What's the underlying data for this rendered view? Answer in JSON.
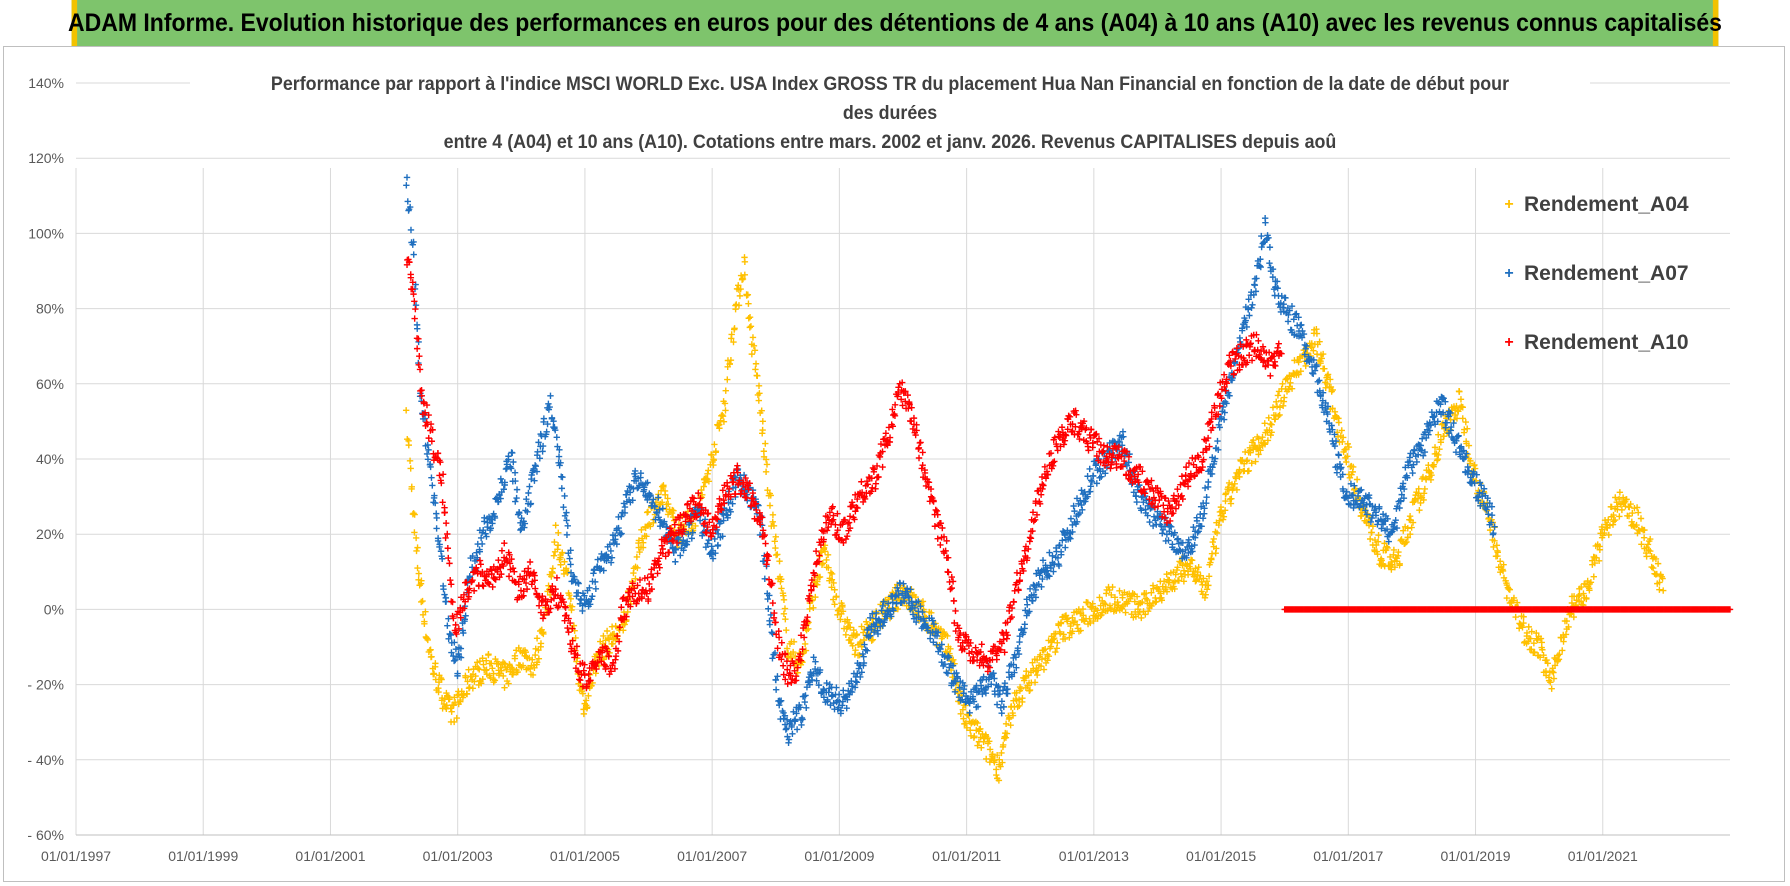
{
  "banner": {
    "title": "ADAM Informe. Evolution historique des performances en euros pour des détentions de 4 ans (A04) à 10 ans (A10) avec les revenus connus capitalisés"
  },
  "colors": {
    "banner_bg": "#7ec46c",
    "banner_border": "#f2c200",
    "A04": "#ffc000",
    "A07": "#1f6fbf",
    "A10": "#ff0000",
    "grid": "#d9d9d9"
  },
  "chart_data": {
    "type": "scatter",
    "title_lines": [
      "Performance par rapport à l'indice MSCI WORLD Exc. USA Index GROSS TR  du placement Hua Nan Financial  en fonction de la date de début pour",
      "des durées",
      "entre 4 (A04) et 10 ans (A10).  Cotations entre mars. 2002 et janv. 2026.  Revenus CAPITALISES depuis aoû"
    ],
    "xlabel": "",
    "ylabel": "",
    "x_range": [
      1997.0,
      2023.0
    ],
    "ylim": [
      -60,
      140
    ],
    "x_ticks": [
      {
        "year": 1997,
        "label": "01/01/1997"
      },
      {
        "year": 1999,
        "label": "01/01/1999"
      },
      {
        "year": 2001,
        "label": "01/01/2001"
      },
      {
        "year": 2003,
        "label": "01/01/2003"
      },
      {
        "year": 2005,
        "label": "01/01/2005"
      },
      {
        "year": 2007,
        "label": "01/01/2007"
      },
      {
        "year": 2009,
        "label": "01/01/2009"
      },
      {
        "year": 2011,
        "label": "01/01/2011"
      },
      {
        "year": 2013,
        "label": "01/01/2013"
      },
      {
        "year": 2015,
        "label": "01/01/2015"
      },
      {
        "year": 2017,
        "label": "01/01/2017"
      },
      {
        "year": 2019,
        "label": "01/01/2019"
      },
      {
        "year": 2021,
        "label": "01/01/2021"
      }
    ],
    "y_ticks": [
      {
        "value": 140,
        "label": "140%"
      },
      {
        "value": 120,
        "label": "120%"
      },
      {
        "value": 100,
        "label": "100%"
      },
      {
        "value": 80,
        "label": "80%"
      },
      {
        "value": 60,
        "label": "60%"
      },
      {
        "value": 40,
        "label": "40%"
      },
      {
        "value": 20,
        "label": "20%"
      },
      {
        "value": 0,
        "label": "0%"
      },
      {
        "value": -20,
        "label": "- 20%"
      },
      {
        "value": -40,
        "label": "- 40%"
      },
      {
        "value": -60,
        "label": "- 60%"
      }
    ],
    "legend_position": "right",
    "series": [
      {
        "name": "Rendement_A04",
        "color": "#ffc000",
        "marker": "+",
        "points": [
          [
            2002.2,
            50
          ],
          [
            2002.35,
            15
          ],
          [
            2002.5,
            -5
          ],
          [
            2002.6,
            -15
          ],
          [
            2002.75,
            -22
          ],
          [
            2002.9,
            -28
          ],
          [
            2003.0,
            -25
          ],
          [
            2003.2,
            -18
          ],
          [
            2003.5,
            -15
          ],
          [
            2003.75,
            -18
          ],
          [
            2004.0,
            -12
          ],
          [
            2004.2,
            -15
          ],
          [
            2004.4,
            0
          ],
          [
            2004.55,
            20
          ],
          [
            2004.75,
            5
          ],
          [
            2004.9,
            -18
          ],
          [
            2005.0,
            -26
          ],
          [
            2005.2,
            -12
          ],
          [
            2005.4,
            -8
          ],
          [
            2005.6,
            -5
          ],
          [
            2005.8,
            12
          ],
          [
            2006.0,
            25
          ],
          [
            2006.25,
            30
          ],
          [
            2006.45,
            20
          ],
          [
            2006.75,
            25
          ],
          [
            2007.0,
            40
          ],
          [
            2007.2,
            55
          ],
          [
            2007.35,
            78
          ],
          [
            2007.5,
            92
          ],
          [
            2007.6,
            75
          ],
          [
            2007.75,
            55
          ],
          [
            2007.9,
            30
          ],
          [
            2008.05,
            10
          ],
          [
            2008.2,
            -10
          ],
          [
            2008.4,
            -15
          ],
          [
            2008.6,
            5
          ],
          [
            2008.75,
            15
          ],
          [
            2009.0,
            0
          ],
          [
            2009.25,
            -10
          ],
          [
            2009.5,
            -5
          ],
          [
            2009.75,
            0
          ],
          [
            2010.0,
            5
          ],
          [
            2010.25,
            0
          ],
          [
            2010.5,
            -5
          ],
          [
            2010.75,
            -12
          ],
          [
            2010.9,
            -25
          ],
          [
            2011.0,
            -30
          ],
          [
            2011.25,
            -35
          ],
          [
            2011.5,
            -42
          ],
          [
            2011.75,
            -25
          ],
          [
            2012.0,
            -18
          ],
          [
            2012.25,
            -12
          ],
          [
            2012.5,
            -5
          ],
          [
            2012.75,
            -3
          ],
          [
            2013.0,
            0
          ],
          [
            2013.25,
            3
          ],
          [
            2013.5,
            2
          ],
          [
            2013.75,
            0
          ],
          [
            2014.0,
            5
          ],
          [
            2014.25,
            8
          ],
          [
            2014.5,
            12
          ],
          [
            2014.75,
            5
          ],
          [
            2015.0,
            25
          ],
          [
            2015.25,
            35
          ],
          [
            2015.5,
            42
          ],
          [
            2015.75,
            48
          ],
          [
            2016.0,
            58
          ],
          [
            2016.25,
            66
          ],
          [
            2016.5,
            72
          ],
          [
            2016.75,
            55
          ],
          [
            2017.0,
            40
          ],
          [
            2017.25,
            25
          ],
          [
            2017.5,
            15
          ],
          [
            2017.75,
            12
          ],
          [
            2018.0,
            25
          ],
          [
            2018.25,
            35
          ],
          [
            2018.5,
            48
          ],
          [
            2018.75,
            55
          ],
          [
            2019.0,
            35
          ],
          [
            2019.25,
            22
          ],
          [
            2019.5,
            5
          ],
          [
            2019.75,
            -5
          ],
          [
            2020.0,
            -10
          ],
          [
            2020.2,
            -20
          ],
          [
            2020.35,
            -8
          ],
          [
            2020.5,
            0
          ],
          [
            2020.75,
            5
          ],
          [
            2021.0,
            20
          ],
          [
            2021.25,
            28
          ],
          [
            2021.5,
            25
          ],
          [
            2021.75,
            15
          ],
          [
            2021.95,
            5
          ]
        ]
      },
      {
        "name": "Rendement_A07",
        "color": "#1f6fbf",
        "marker": "+",
        "points": [
          [
            2002.2,
            115
          ],
          [
            2002.3,
            95
          ],
          [
            2002.4,
            60
          ],
          [
            2002.55,
            40
          ],
          [
            2002.7,
            20
          ],
          [
            2002.85,
            -5
          ],
          [
            2003.0,
            -15
          ],
          [
            2003.2,
            10
          ],
          [
            2003.4,
            20
          ],
          [
            2003.6,
            28
          ],
          [
            2003.85,
            40
          ],
          [
            2004.0,
            20
          ],
          [
            2004.2,
            35
          ],
          [
            2004.45,
            55
          ],
          [
            2004.6,
            40
          ],
          [
            2004.8,
            10
          ],
          [
            2005.0,
            0
          ],
          [
            2005.2,
            10
          ],
          [
            2005.4,
            15
          ],
          [
            2005.6,
            25
          ],
          [
            2005.8,
            35
          ],
          [
            2006.0,
            30
          ],
          [
            2006.2,
            25
          ],
          [
            2006.4,
            15
          ],
          [
            2006.6,
            20
          ],
          [
            2006.8,
            25
          ],
          [
            2007.0,
            15
          ],
          [
            2007.2,
            25
          ],
          [
            2007.4,
            35
          ],
          [
            2007.6,
            30
          ],
          [
            2007.75,
            25
          ],
          [
            2007.9,
            0
          ],
          [
            2008.05,
            -25
          ],
          [
            2008.2,
            -32
          ],
          [
            2008.4,
            -28
          ],
          [
            2008.6,
            -15
          ],
          [
            2008.8,
            -22
          ],
          [
            2009.0,
            -25
          ],
          [
            2009.25,
            -20
          ],
          [
            2009.5,
            -5
          ],
          [
            2009.75,
            0
          ],
          [
            2010.0,
            5
          ],
          [
            2010.2,
            0
          ],
          [
            2010.45,
            -5
          ],
          [
            2010.7,
            -15
          ],
          [
            2010.9,
            -22
          ],
          [
            2011.1,
            -25
          ],
          [
            2011.35,
            -18
          ],
          [
            2011.55,
            -25
          ],
          [
            2011.75,
            -15
          ],
          [
            2011.95,
            0
          ],
          [
            2012.2,
            10
          ],
          [
            2012.45,
            15
          ],
          [
            2012.7,
            25
          ],
          [
            2012.95,
            35
          ],
          [
            2013.2,
            40
          ],
          [
            2013.45,
            45
          ],
          [
            2013.7,
            30
          ],
          [
            2013.95,
            25
          ],
          [
            2014.2,
            20
          ],
          [
            2014.45,
            15
          ],
          [
            2014.7,
            25
          ],
          [
            2014.95,
            45
          ],
          [
            2015.15,
            60
          ],
          [
            2015.35,
            75
          ],
          [
            2015.55,
            88
          ],
          [
            2015.7,
            102
          ],
          [
            2015.85,
            85
          ],
          [
            2016.0,
            80
          ],
          [
            2016.2,
            75
          ],
          [
            2016.45,
            65
          ],
          [
            2016.7,
            50
          ],
          [
            2016.95,
            30
          ],
          [
            2017.2,
            30
          ],
          [
            2017.45,
            25
          ],
          [
            2017.7,
            20
          ],
          [
            2017.95,
            38
          ],
          [
            2018.2,
            45
          ],
          [
            2018.45,
            55
          ],
          [
            2018.7,
            45
          ],
          [
            2018.95,
            35
          ],
          [
            2019.15,
            28
          ],
          [
            2019.3,
            22
          ]
        ]
      },
      {
        "name": "Rendement_A10",
        "color": "#ff0000",
        "marker": "+",
        "points": [
          [
            2002.2,
            95
          ],
          [
            2002.3,
            85
          ],
          [
            2002.45,
            55
          ],
          [
            2002.6,
            45
          ],
          [
            2002.75,
            35
          ],
          [
            2002.85,
            15
          ],
          [
            2002.95,
            -5
          ],
          [
            2003.15,
            5
          ],
          [
            2003.35,
            10
          ],
          [
            2003.55,
            8
          ],
          [
            2003.75,
            15
          ],
          [
            2003.95,
            5
          ],
          [
            2004.15,
            10
          ],
          [
            2004.35,
            0
          ],
          [
            2004.55,
            5
          ],
          [
            2004.75,
            -5
          ],
          [
            2004.9,
            -15
          ],
          [
            2005.05,
            -20
          ],
          [
            2005.25,
            -12
          ],
          [
            2005.45,
            -15
          ],
          [
            2005.6,
            0
          ],
          [
            2005.8,
            5
          ],
          [
            2006.0,
            5
          ],
          [
            2006.2,
            15
          ],
          [
            2006.4,
            20
          ],
          [
            2006.6,
            25
          ],
          [
            2006.8,
            28
          ],
          [
            2007.0,
            20
          ],
          [
            2007.2,
            30
          ],
          [
            2007.4,
            35
          ],
          [
            2007.6,
            30
          ],
          [
            2007.75,
            25
          ],
          [
            2007.9,
            10
          ],
          [
            2008.05,
            -10
          ],
          [
            2008.2,
            -18
          ],
          [
            2008.35,
            -15
          ],
          [
            2008.5,
            0
          ],
          [
            2008.65,
            15
          ],
          [
            2008.85,
            25
          ],
          [
            2009.05,
            20
          ],
          [
            2009.3,
            30
          ],
          [
            2009.55,
            35
          ],
          [
            2009.75,
            45
          ],
          [
            2009.95,
            58
          ],
          [
            2010.1,
            55
          ],
          [
            2010.3,
            40
          ],
          [
            2010.5,
            25
          ],
          [
            2010.7,
            15
          ],
          [
            2010.85,
            -5
          ],
          [
            2011.0,
            -10
          ],
          [
            2011.2,
            -12
          ],
          [
            2011.4,
            -14
          ],
          [
            2011.6,
            -8
          ],
          [
            2011.75,
            5
          ],
          [
            2011.95,
            15
          ],
          [
            2012.2,
            35
          ],
          [
            2012.45,
            45
          ],
          [
            2012.7,
            50
          ],
          [
            2012.95,
            45
          ],
          [
            2013.2,
            40
          ],
          [
            2013.45,
            40
          ],
          [
            2013.7,
            35
          ],
          [
            2013.95,
            30
          ],
          [
            2014.2,
            25
          ],
          [
            2014.45,
            35
          ],
          [
            2014.7,
            40
          ],
          [
            2014.95,
            55
          ],
          [
            2015.15,
            65
          ],
          [
            2015.35,
            68
          ],
          [
            2015.55,
            70
          ],
          [
            2015.75,
            65
          ],
          [
            2015.95,
            68
          ]
        ]
      }
    ],
    "zero_band": {
      "series": "Rendement_A10",
      "from": 2016.0,
      "to": 2023.0,
      "value": 0
    }
  }
}
